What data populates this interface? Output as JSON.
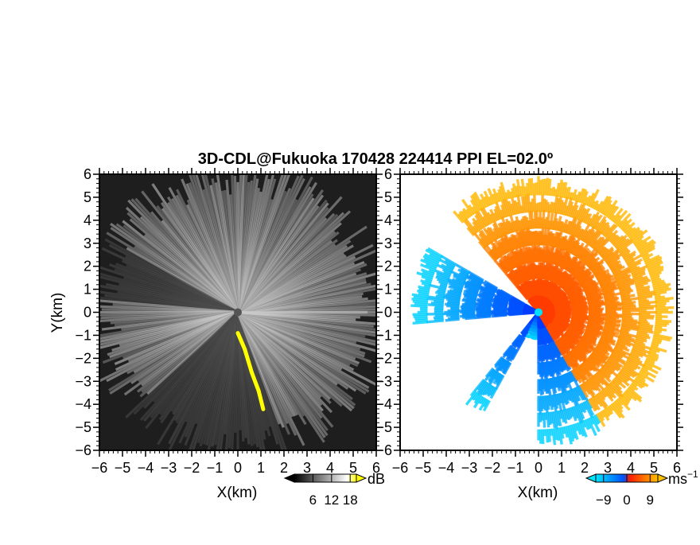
{
  "title": "3D-CDL@Fukuoka 170428 224414 PPI EL=02.0º",
  "chart_data": [
    {
      "type": "heatmap",
      "name": "reflectivity",
      "xlabel": "X(km)",
      "ylabel": "Y(km)",
      "xlim": [
        -6,
        6
      ],
      "ylim": [
        -6,
        6
      ],
      "xticks": [
        "−6",
        "−5",
        "−4",
        "−3",
        "−2",
        "−1",
        "0",
        "1",
        "2",
        "3",
        "4",
        "5",
        "6"
      ],
      "yticks": [
        "6",
        "5",
        "4",
        "3",
        "2",
        "1",
        "0",
        "−1",
        "−2",
        "−3",
        "−4",
        "−5",
        "−6"
      ],
      "colorbar": {
        "unit": "dB",
        "ticks": [
          {
            "value": 6,
            "label": "6"
          },
          {
            "value": 12,
            "label": "12"
          },
          {
            "value": 18,
            "label": "18"
          }
        ],
        "range": [
          0,
          20
        ],
        "colors": [
          "#000000",
          "#ffffff",
          "#ffff00"
        ]
      },
      "highlight_color": "#ffff00"
    },
    {
      "type": "heatmap",
      "name": "doppler-velocity",
      "xlabel": "X(km)",
      "xlim": [
        -6,
        6
      ],
      "ylim": [
        -6,
        6
      ],
      "xticks": [
        "−6",
        "−5",
        "−4",
        "−3",
        "−2",
        "−1",
        "0",
        "1",
        "2",
        "3",
        "4",
        "5",
        "6"
      ],
      "colorbar": {
        "unit": "ms",
        "unit_exp": "−1",
        "ticks": [
          {
            "value": -9,
            "label": "−9"
          },
          {
            "value": 0,
            "label": "0"
          },
          {
            "value": 9,
            "label": "9"
          }
        ],
        "range": [
          -12,
          12
        ],
        "colors": [
          "#00e5ff",
          "#0050ff",
          "#ff2000",
          "#ffc000"
        ]
      },
      "center_color": "#00e0ff"
    }
  ]
}
